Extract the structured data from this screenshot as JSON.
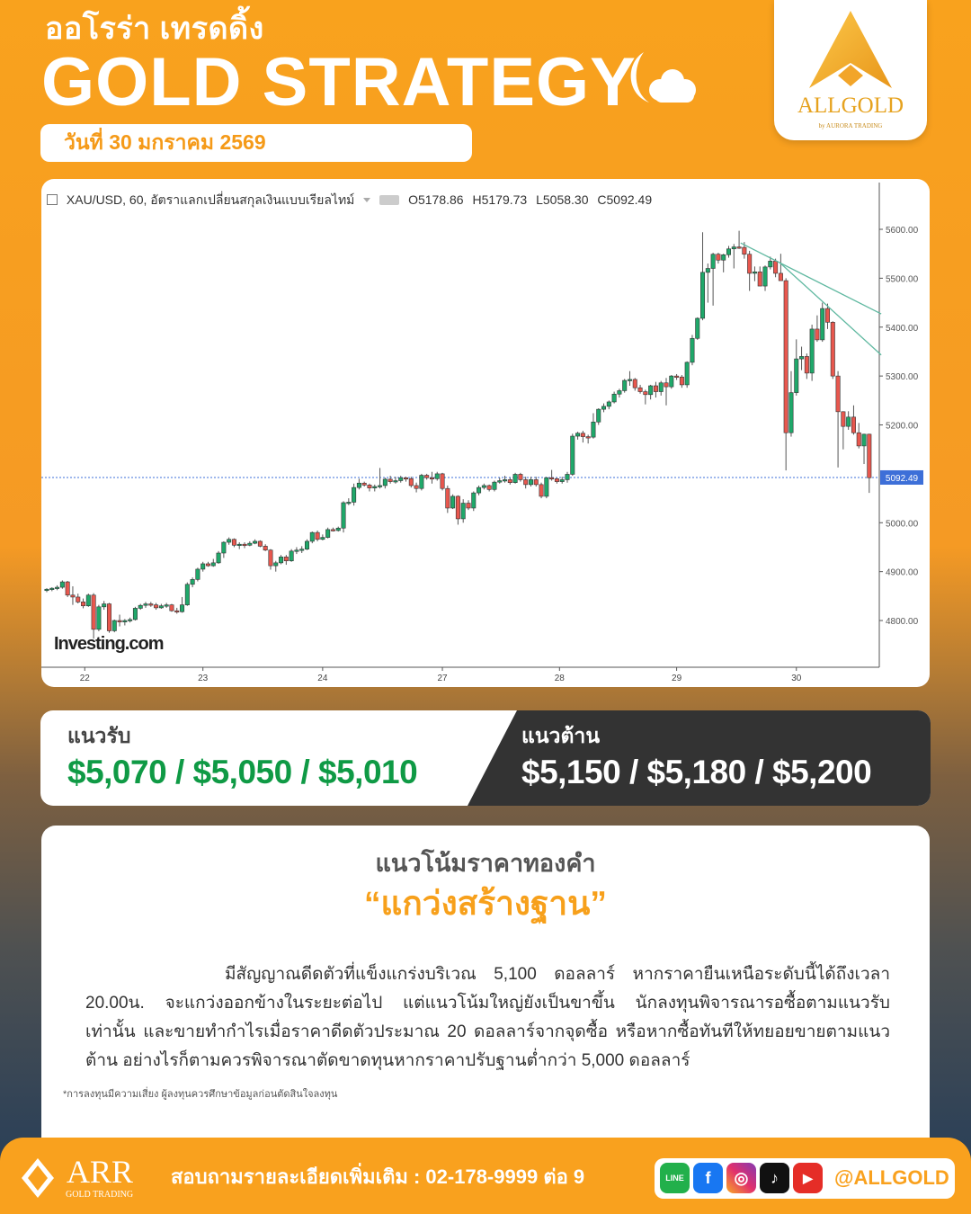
{
  "header": {
    "brand_thai": "ออโรร่า เทรดดิ้ง",
    "title": "GOLD STRATEGY",
    "date": "วันที่ 30 มกราคม 2569",
    "logo_name": "ALLGOLD",
    "logo_sub": "by AURORA TRADING",
    "moon_icon": "moon-cloud-icon"
  },
  "chart_header": {
    "symbol": "XAU/USD, 60, อัตราแลกเปลี่ยนสกุลเงินแบบเรียลไทม์",
    "open": "O5178.86",
    "high": "H5179.73",
    "low": "L5058.30",
    "close": "C5092.49",
    "watermark": "Investing.com"
  },
  "chart_data": {
    "type": "candlestick",
    "symbol": "XAU/USD",
    "interval": "60",
    "ylim": [
      4720,
      5660
    ],
    "y_ticks": [
      "5600.00",
      "5500.00",
      "5400.00",
      "5300.00",
      "5200.00",
      "5100.00",
      "5000.00",
      "4900.00",
      "4800.00"
    ],
    "y_tick_values": [
      5600,
      5500,
      5400,
      5300,
      5200,
      5100,
      5000,
      4900,
      4800
    ],
    "x_ticks": [
      {
        "label": "22",
        "index": 7.3
      },
      {
        "label": "23",
        "index": 30
      },
      {
        "label": "24",
        "index": 53
      },
      {
        "label": "27",
        "index": 76
      },
      {
        "label": "28",
        "index": 98.5
      },
      {
        "label": "29",
        "index": 121
      },
      {
        "label": "30",
        "index": 144
      }
    ],
    "last_price": "5092.49",
    "last_price_value": 5092.49,
    "colors": {
      "up": "#1fa86a",
      "down": "#e8574e",
      "trendline": "#5fb8a0",
      "last_price": "#3d6fd8"
    },
    "trendlines": [
      {
        "from": {
          "index": 133.3,
          "price": 5572
        },
        "to": {
          "index": 160.3,
          "price": 5427
        }
      },
      {
        "from": {
          "index": 140.8,
          "price": 5532
        },
        "to": {
          "index": 160.3,
          "price": 5343
        }
      }
    ],
    "candles_ohlc": [
      [
        4862,
        4866,
        4858,
        4864
      ],
      [
        4864,
        4868,
        4860,
        4866
      ],
      [
        4866,
        4872,
        4862,
        4868
      ],
      [
        4868,
        4882,
        4865,
        4879
      ],
      [
        4879,
        4881,
        4848,
        4852
      ],
      [
        4852,
        4870,
        4832,
        4848
      ],
      [
        4848,
        4855,
        4835,
        4838
      ],
      [
        4838,
        4845,
        4825,
        4830
      ],
      [
        4830,
        4855,
        4828,
        4852
      ],
      [
        4852,
        4856,
        4763,
        4782
      ],
      [
        4782,
        4832,
        4778,
        4828
      ],
      [
        4828,
        4840,
        4822,
        4834
      ],
      [
        4834,
        4836,
        4775,
        4779
      ],
      [
        4779,
        4802,
        4776,
        4800
      ],
      [
        4800,
        4812,
        4788,
        4797
      ],
      [
        4797,
        4803,
        4790,
        4800
      ],
      [
        4800,
        4806,
        4796,
        4802
      ],
      [
        4802,
        4828,
        4800,
        4825
      ],
      [
        4825,
        4834,
        4822,
        4831
      ],
      [
        4831,
        4838,
        4826,
        4834
      ],
      [
        4834,
        4838,
        4828,
        4832
      ],
      [
        4832,
        4836,
        4822,
        4826
      ],
      [
        4826,
        4834,
        4824,
        4830
      ],
      [
        4830,
        4836,
        4826,
        4832
      ],
      [
        4832,
        4834,
        4818,
        4820
      ],
      [
        4820,
        4826,
        4814,
        4818
      ],
      [
        4818,
        4848,
        4816,
        4832
      ],
      [
        4832,
        4878,
        4830,
        4874
      ],
      [
        4874,
        4888,
        4868,
        4884
      ],
      [
        4884,
        4908,
        4880,
        4905
      ],
      [
        4905,
        4920,
        4900,
        4916
      ],
      [
        4916,
        4920,
        4910,
        4912
      ],
      [
        4912,
        4926,
        4910,
        4918
      ],
      [
        4918,
        4942,
        4916,
        4938
      ],
      [
        4938,
        4962,
        4928,
        4960
      ],
      [
        4960,
        4970,
        4955,
        4966
      ],
      [
        4966,
        4968,
        4950,
        4954
      ],
      [
        4954,
        4960,
        4946,
        4956
      ],
      [
        4956,
        4960,
        4948,
        4954
      ],
      [
        4954,
        4962,
        4952,
        4958
      ],
      [
        4958,
        4966,
        4956,
        4962
      ],
      [
        4962,
        4964,
        4950,
        4952
      ],
      [
        4952,
        4956,
        4942,
        4944
      ],
      [
        4944,
        4946,
        4904,
        4912
      ],
      [
        4912,
        4922,
        4900,
        4918
      ],
      [
        4918,
        4934,
        4915,
        4930
      ],
      [
        4930,
        4934,
        4914,
        4922
      ],
      [
        4922,
        4946,
        4920,
        4942
      ],
      [
        4942,
        4950,
        4936,
        4944
      ],
      [
        4944,
        4952,
        4938,
        4946
      ],
      [
        4946,
        4966,
        4944,
        4962
      ],
      [
        4962,
        4982,
        4958,
        4980
      ],
      [
        4980,
        4984,
        4962,
        4966
      ],
      [
        4966,
        4976,
        4964,
        4970
      ],
      [
        4970,
        4990,
        4968,
        4986
      ],
      [
        4986,
        4990,
        4982,
        4984
      ],
      [
        4984,
        4992,
        4982,
        4989
      ],
      [
        4989,
        5044,
        4980,
        5041
      ],
      [
        5041,
        5050,
        5036,
        5042
      ],
      [
        5042,
        5080,
        5035,
        5072
      ],
      [
        5072,
        5090,
        5068,
        5081
      ],
      [
        5081,
        5084,
        5074,
        5077
      ],
      [
        5077,
        5080,
        5064,
        5071
      ],
      [
        5071,
        5078,
        5064,
        5074
      ],
      [
        5074,
        5112,
        5070,
        5076
      ],
      [
        5076,
        5092,
        5070,
        5089
      ],
      [
        5089,
        5096,
        5080,
        5084
      ],
      [
        5084,
        5094,
        5080,
        5086
      ],
      [
        5086,
        5096,
        5082,
        5092
      ],
      [
        5092,
        5094,
        5084,
        5090
      ],
      [
        5090,
        5094,
        5072,
        5076
      ],
      [
        5076,
        5082,
        5062,
        5070
      ],
      [
        5070,
        5100,
        5066,
        5097
      ],
      [
        5097,
        5100,
        5088,
        5092
      ],
      [
        5092,
        5104,
        5080,
        5090
      ],
      [
        5090,
        5104,
        5086,
        5100
      ],
      [
        5100,
        5102,
        5066,
        5070
      ],
      [
        5070,
        5076,
        5020,
        5030
      ],
      [
        5030,
        5058,
        5028,
        5054
      ],
      [
        5054,
        5056,
        4996,
        5008
      ],
      [
        5008,
        5048,
        5000,
        5040
      ],
      [
        5040,
        5046,
        5026,
        5030
      ],
      [
        5030,
        5064,
        5024,
        5061
      ],
      [
        5061,
        5076,
        5056,
        5072
      ],
      [
        5072,
        5080,
        5068,
        5076
      ],
      [
        5076,
        5078,
        5064,
        5068
      ],
      [
        5068,
        5086,
        5064,
        5083
      ],
      [
        5083,
        5092,
        5080,
        5086
      ],
      [
        5086,
        5096,
        5082,
        5088
      ],
      [
        5088,
        5092,
        5078,
        5082
      ],
      [
        5082,
        5102,
        5080,
        5099
      ],
      [
        5099,
        5102,
        5084,
        5088
      ],
      [
        5088,
        5094,
        5070,
        5078
      ],
      [
        5078,
        5094,
        5074,
        5088
      ],
      [
        5088,
        5094,
        5074,
        5078
      ],
      [
        5078,
        5082,
        5050,
        5054
      ],
      [
        5054,
        5094,
        5050,
        5092
      ],
      [
        5092,
        5108,
        5086,
        5090
      ],
      [
        5090,
        5092,
        5080,
        5084
      ],
      [
        5084,
        5094,
        5080,
        5088
      ],
      [
        5088,
        5104,
        5082,
        5099
      ],
      [
        5099,
        5182,
        5096,
        5177
      ],
      [
        5177,
        5186,
        5170,
        5183
      ],
      [
        5183,
        5188,
        5164,
        5176
      ],
      [
        5176,
        5180,
        5162,
        5175
      ],
      [
        5175,
        5224,
        5172,
        5206
      ],
      [
        5206,
        5234,
        5200,
        5232
      ],
      [
        5232,
        5244,
        5226,
        5238
      ],
      [
        5238,
        5250,
        5232,
        5247
      ],
      [
        5247,
        5268,
        5244,
        5263
      ],
      [
        5263,
        5274,
        5256,
        5270
      ],
      [
        5270,
        5294,
        5266,
        5291
      ],
      [
        5291,
        5310,
        5280,
        5293
      ],
      [
        5293,
        5296,
        5270,
        5276
      ],
      [
        5276,
        5282,
        5264,
        5268
      ],
      [
        5268,
        5272,
        5242,
        5262
      ],
      [
        5262,
        5282,
        5252,
        5280
      ],
      [
        5280,
        5288,
        5256,
        5268
      ],
      [
        5268,
        5290,
        5260,
        5286
      ],
      [
        5286,
        5296,
        5240,
        5278
      ],
      [
        5278,
        5302,
        5274,
        5300
      ],
      [
        5300,
        5304,
        5292,
        5298
      ],
      [
        5298,
        5302,
        5276,
        5282
      ],
      [
        5282,
        5330,
        5276,
        5328
      ],
      [
        5328,
        5384,
        5322,
        5377
      ],
      [
        5377,
        5420,
        5374,
        5418
      ],
      [
        5418,
        5594,
        5414,
        5512
      ],
      [
        5512,
        5530,
        5450,
        5520
      ],
      [
        5520,
        5552,
        5444,
        5549
      ],
      [
        5549,
        5552,
        5530,
        5537
      ],
      [
        5537,
        5550,
        5512,
        5548
      ],
      [
        5548,
        5566,
        5542,
        5560
      ],
      [
        5560,
        5570,
        5520,
        5564
      ],
      [
        5564,
        5597,
        5560,
        5563
      ],
      [
        5563,
        5574,
        5540,
        5549
      ],
      [
        5549,
        5556,
        5474,
        5510
      ],
      [
        5510,
        5524,
        5494,
        5513
      ],
      [
        5513,
        5524,
        5484,
        5484
      ],
      [
        5484,
        5526,
        5474,
        5523
      ],
      [
        5523,
        5544,
        5518,
        5535
      ],
      [
        5535,
        5540,
        5502,
        5510
      ],
      [
        5510,
        5550,
        5496,
        5495
      ],
      [
        5495,
        5500,
        5107,
        5184
      ],
      [
        5184,
        5310,
        5176,
        5266
      ],
      [
        5266,
        5375,
        5260,
        5335
      ],
      [
        5335,
        5360,
        5312,
        5340
      ],
      [
        5340,
        5346,
        5294,
        5306
      ],
      [
        5306,
        5405,
        5290,
        5396
      ],
      [
        5396,
        5424,
        5370,
        5374
      ],
      [
        5374,
        5450,
        5370,
        5438
      ],
      [
        5438,
        5448,
        5396,
        5410
      ],
      [
        5410,
        5412,
        5294,
        5300
      ],
      [
        5300,
        5310,
        5113,
        5227
      ],
      [
        5227,
        5228,
        5150,
        5197
      ],
      [
        5197,
        5228,
        5190,
        5216
      ],
      [
        5216,
        5240,
        5180,
        5184
      ],
      [
        5184,
        5204,
        5152,
        5157
      ],
      [
        5157,
        5182,
        5120,
        5181
      ],
      [
        5181,
        5182,
        5061,
        5092
      ]
    ]
  },
  "levels": {
    "support_label": "แนวรับ",
    "support_values": "$5,070 / $5,050 / $5,010",
    "support_color": "#0f9a45",
    "resistance_label": "แนวต้าน",
    "resistance_values": "$5,150 / $5,180 / $5,200"
  },
  "trend": {
    "title": "แนวโน้มราคาทองคำ",
    "value": "“แกว่งสร้างฐาน”",
    "paragraph": "มีสัญญาณดีดตัวที่แข็งแกร่งบริเวณ 5,100 ดอลลาร์ หากราคายืนเหนือระดับนี้ได้ถึงเวลา 20.00น. จะแกว่งออกข้างในระยะต่อไป แต่แนวโน้มใหญ่ยังเป็นขาขึ้น นักลงทุนพิจารณารอซื้อตามแนวรับเท่านั้น และขายทำกำไรเมื่อราคาดีดตัวประมาณ 20 ดอลลาร์จากจุดซื้อ หรือหากซื้อทันทีให้ทยอยขายตามแนวต้าน อย่างไรก็ตามควรพิจารณาตัดขาดทุนหากราคาปรับฐานต่ำกว่า 5,000 ดอลลาร์",
    "disclaimer": "*การลงทุนมีความเสี่ยง ผู้ลงทุนควรศึกษาข้อมูลก่อนตัดสินใจลงทุน"
  },
  "footer": {
    "logo_name": "ARR",
    "logo_sub": "GOLD TRADING",
    "contact": "สอบถามรายละเอียดเพิ่มเติม : 02-178-9999 ต่อ 9",
    "social_icons": [
      "line-icon",
      "facebook-icon",
      "instagram-icon",
      "tiktok-icon",
      "youtube-icon"
    ],
    "social_line": "LINE",
    "handle": "@ALLGOLD"
  }
}
